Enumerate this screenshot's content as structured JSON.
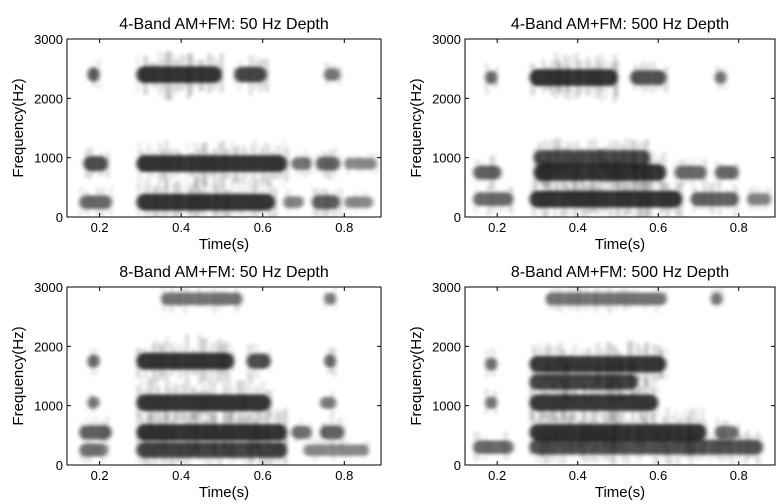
{
  "chart_data": [
    {
      "type": "heatmap",
      "title": "4-Band AM+FM: 50 Hz Depth",
      "xlabel": "Time(s)",
      "ylabel": "Frequency(Hz)",
      "xlim": [
        0.12,
        0.89
      ],
      "ylim": [
        0,
        3000
      ],
      "xticks": [
        "0.2",
        "0.4",
        "0.6",
        "0.8"
      ],
      "yticks": [
        "0",
        "1000",
        "2000",
        "3000"
      ],
      "grid": false,
      "colormap": "grayscale (dark = high energy)",
      "bands": [
        {
          "freq_hz": 250,
          "segments": [
            [
              0.15,
              0.23,
              0.55
            ],
            [
              0.29,
              0.63,
              0.95
            ],
            [
              0.65,
              0.7,
              0.35
            ],
            [
              0.72,
              0.79,
              0.6
            ],
            [
              0.8,
              0.87,
              0.3
            ]
          ]
        },
        {
          "freq_hz": 900,
          "segments": [
            [
              0.16,
              0.22,
              0.75
            ],
            [
              0.29,
              0.66,
              0.95
            ],
            [
              0.67,
              0.72,
              0.45
            ],
            [
              0.73,
              0.79,
              0.6
            ],
            [
              0.8,
              0.88,
              0.3
            ]
          ]
        },
        {
          "freq_hz": 2400,
          "segments": [
            [
              0.17,
              0.2,
              0.65
            ],
            [
              0.29,
              0.5,
              0.95
            ],
            [
              0.53,
              0.61,
              0.8
            ],
            [
              0.75,
              0.79,
              0.45
            ]
          ]
        }
      ]
    },
    {
      "type": "heatmap",
      "title": "4-Band AM+FM: 500 Hz Depth",
      "xlabel": "Time(s)",
      "ylabel": "Frequency(Hz)",
      "xlim": [
        0.12,
        0.89
      ],
      "ylim": [
        0,
        3000
      ],
      "xticks": [
        "0.2",
        "0.4",
        "0.6",
        "0.8"
      ],
      "yticks": [
        "0",
        "1000",
        "2000",
        "3000"
      ],
      "grid": false,
      "colormap": "grayscale (dark = high energy)",
      "bands": [
        {
          "freq_hz": 300,
          "segments": [
            [
              0.14,
              0.24,
              0.55
            ],
            [
              0.28,
              0.66,
              0.95
            ],
            [
              0.68,
              0.8,
              0.6
            ],
            [
              0.82,
              0.88,
              0.35
            ]
          ]
        },
        {
          "freq_hz": 750,
          "segments": [
            [
              0.14,
              0.21,
              0.6
            ],
            [
              0.29,
              0.62,
              0.95
            ],
            [
              0.64,
              0.72,
              0.55
            ],
            [
              0.74,
              0.8,
              0.55
            ]
          ]
        },
        {
          "freq_hz": 1000,
          "segments": [
            [
              0.29,
              0.58,
              0.75
            ]
          ]
        },
        {
          "freq_hz": 2350,
          "segments": [
            [
              0.17,
              0.2,
              0.55
            ],
            [
              0.28,
              0.5,
              0.95
            ],
            [
              0.53,
              0.62,
              0.7
            ],
            [
              0.74,
              0.77,
              0.45
            ]
          ]
        }
      ]
    },
    {
      "type": "heatmap",
      "title": "8-Band AM+FM: 50 Hz Depth",
      "xlabel": "Time(s)",
      "ylabel": "Frequency(Hz)",
      "xlim": [
        0.12,
        0.89
      ],
      "ylim": [
        0,
        3000
      ],
      "xticks": [
        "0.2",
        "0.4",
        "0.6",
        "0.8"
      ],
      "yticks": [
        "0",
        "1000",
        "2000",
        "3000"
      ],
      "grid": false,
      "colormap": "grayscale (dark = high energy)",
      "bands": [
        {
          "freq_hz": 250,
          "segments": [
            [
              0.15,
              0.22,
              0.45
            ],
            [
              0.29,
              0.66,
              0.8
            ],
            [
              0.7,
              0.86,
              0.3
            ]
          ]
        },
        {
          "freq_hz": 550,
          "segments": [
            [
              0.15,
              0.23,
              0.6
            ],
            [
              0.29,
              0.66,
              0.95
            ],
            [
              0.67,
              0.72,
              0.5
            ],
            [
              0.74,
              0.8,
              0.6
            ]
          ]
        },
        {
          "freq_hz": 1050,
          "segments": [
            [
              0.17,
              0.2,
              0.4
            ],
            [
              0.29,
              0.62,
              0.95
            ],
            [
              0.74,
              0.78,
              0.4
            ]
          ]
        },
        {
          "freq_hz": 1750,
          "segments": [
            [
              0.17,
              0.2,
              0.55
            ],
            [
              0.29,
              0.53,
              0.95
            ],
            [
              0.56,
              0.62,
              0.75
            ],
            [
              0.75,
              0.78,
              0.5
            ]
          ]
        },
        {
          "freq_hz": 2800,
          "segments": [
            [
              0.35,
              0.55,
              0.45
            ],
            [
              0.75,
              0.78,
              0.4
            ]
          ]
        }
      ]
    },
    {
      "type": "heatmap",
      "title": "8-Band AM+FM: 500 Hz Depth",
      "xlabel": "Time(s)",
      "ylabel": "Frequency(Hz)",
      "xlim": [
        0.12,
        0.89
      ],
      "ylim": [
        0,
        3000
      ],
      "xticks": [
        "0.2",
        "0.4",
        "0.6",
        "0.8"
      ],
      "yticks": [
        "0",
        "1000",
        "2000",
        "3000"
      ],
      "grid": false,
      "colormap": "grayscale (dark = high energy)",
      "bands": [
        {
          "freq_hz": 300,
          "segments": [
            [
              0.14,
              0.24,
              0.55
            ],
            [
              0.28,
              0.86,
              0.7
            ]
          ]
        },
        {
          "freq_hz": 550,
          "segments": [
            [
              0.28,
              0.72,
              0.95
            ],
            [
              0.74,
              0.8,
              0.5
            ]
          ]
        },
        {
          "freq_hz": 1050,
          "segments": [
            [
              0.17,
              0.2,
              0.45
            ],
            [
              0.28,
              0.6,
              0.9
            ]
          ]
        },
        {
          "freq_hz": 1400,
          "segments": [
            [
              0.28,
              0.55,
              0.8
            ]
          ]
        },
        {
          "freq_hz": 1700,
          "segments": [
            [
              0.17,
              0.2,
              0.5
            ],
            [
              0.28,
              0.62,
              0.9
            ]
          ]
        },
        {
          "freq_hz": 2800,
          "segments": [
            [
              0.32,
              0.62,
              0.45
            ],
            [
              0.73,
              0.76,
              0.4
            ]
          ]
        }
      ]
    }
  ]
}
